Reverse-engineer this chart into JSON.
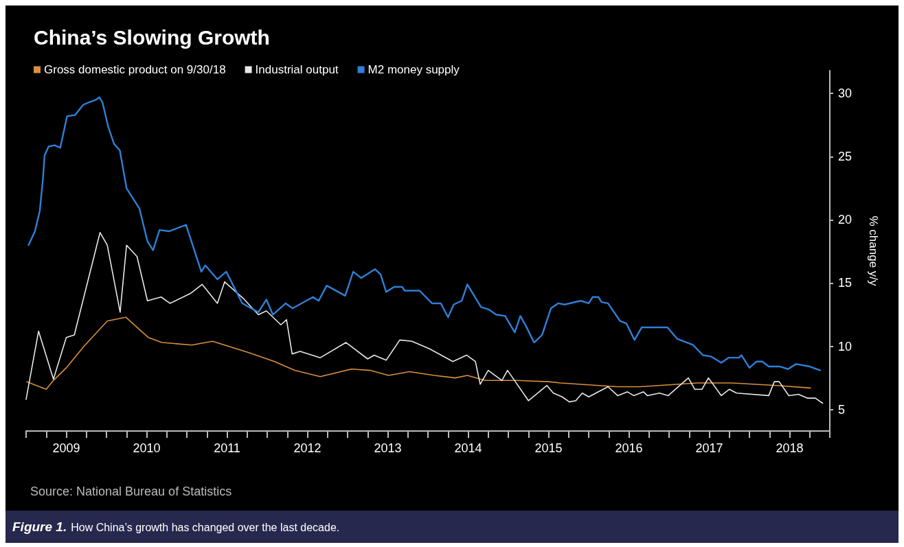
{
  "chart_data": {
    "type": "line",
    "title": "China’s Slowing Growth",
    "y2label": "% change y/y",
    "legend": "top left",
    "grid": false,
    "xlim": [
      2009,
      2019
    ],
    "y2lim": [
      3.3,
      31.8
    ],
    "y2ticks": [
      5,
      10,
      15,
      20,
      25,
      30
    ],
    "xticks": [
      {
        "value": 2009,
        "label": null
      },
      {
        "value": 2009.25,
        "label": null
      },
      {
        "value": 2009.5,
        "label": "2009"
      },
      {
        "value": 2009.75,
        "label": null
      },
      {
        "value": 2010,
        "label": null
      },
      {
        "value": 2010.25,
        "label": null
      },
      {
        "value": 2010.5,
        "label": "2010"
      },
      {
        "value": 2010.75,
        "label": null
      },
      {
        "value": 2011,
        "label": null
      },
      {
        "value": 2011.25,
        "label": null
      },
      {
        "value": 2011.5,
        "label": "2011"
      },
      {
        "value": 2011.75,
        "label": null
      },
      {
        "value": 2012,
        "label": null
      },
      {
        "value": 2012.25,
        "label": null
      },
      {
        "value": 2012.5,
        "label": "2012"
      },
      {
        "value": 2012.75,
        "label": null
      },
      {
        "value": 2013,
        "label": null
      },
      {
        "value": 2013.25,
        "label": null
      },
      {
        "value": 2013.5,
        "label": "2013"
      },
      {
        "value": 2013.75,
        "label": null
      },
      {
        "value": 2014,
        "label": null
      },
      {
        "value": 2014.25,
        "label": null
      },
      {
        "value": 2014.5,
        "label": "2014"
      },
      {
        "value": 2014.75,
        "label": null
      },
      {
        "value": 2015,
        "label": null
      },
      {
        "value": 2015.25,
        "label": null
      },
      {
        "value": 2015.5,
        "label": "2015"
      },
      {
        "value": 2015.75,
        "label": null
      },
      {
        "value": 2016,
        "label": null
      },
      {
        "value": 2016.25,
        "label": null
      },
      {
        "value": 2016.5,
        "label": "2016"
      },
      {
        "value": 2016.75,
        "label": null
      },
      {
        "value": 2017,
        "label": null
      },
      {
        "value": 2017.25,
        "label": null
      },
      {
        "value": 2017.5,
        "label": "2017"
      },
      {
        "value": 2017.75,
        "label": null
      },
      {
        "value": 2018,
        "label": null
      },
      {
        "value": 2018.25,
        "label": null
      },
      {
        "value": 2018.5,
        "label": "2018"
      },
      {
        "value": 2018.75,
        "label": null
      },
      {
        "value": 2019,
        "label": null
      }
    ],
    "annotations": [
      "Source: National Bureau of Statistics",
      "Figure 1.",
      "How China’s growth has changed over the last decade."
    ],
    "series": [
      {
        "name": "Gross domestic product on 9/30/18",
        "color": "#d8903e",
        "axis": "y2",
        "x": [
          2009.01,
          2009.25,
          2009.34,
          2009.5,
          2009.72,
          2010.01,
          2010.24,
          2010.52,
          2010.69,
          2011.06,
          2011.32,
          2011.77,
          2012.09,
          2012.34,
          2012.66,
          2013.05,
          2013.28,
          2013.51,
          2013.77,
          2014.08,
          2014.34,
          2014.49,
          2014.71,
          2015.1,
          2015.5,
          2015.65,
          2016.36,
          2016.64,
          2017.35,
          2017.78,
          2018.35,
          2018.76
        ],
        "values": [
          7.2,
          6.6,
          7.3,
          8.3,
          10.0,
          12.0,
          12.3,
          10.7,
          10.3,
          10.1,
          10.4,
          9.5,
          8.8,
          8.1,
          7.6,
          8.2,
          8.1,
          7.7,
          8.0,
          7.7,
          7.5,
          7.7,
          7.3,
          7.3,
          7.2,
          7.1,
          6.8,
          6.8,
          7.1,
          7.1,
          6.9,
          6.7
        ]
      },
      {
        "name": "Industrial output",
        "color": "#e8e8e8",
        "axis": "y2",
        "x": [
          2009.0,
          2009.155,
          2009.34,
          2009.5,
          2009.6,
          2009.92,
          2010.01,
          2010.17,
          2010.25,
          2010.38,
          2010.51,
          2010.68,
          2010.79,
          2011.05,
          2011.19,
          2011.38,
          2011.47,
          2011.7,
          2011.89,
          2011.99,
          2012.17,
          2012.24,
          2012.31,
          2012.41,
          2012.66,
          2012.98,
          2013.25,
          2013.33,
          2013.48,
          2013.65,
          2013.8,
          2014.02,
          2014.31,
          2014.48,
          2014.59,
          2014.65,
          2014.75,
          2014.92,
          2014.99,
          2015.25,
          2015.48,
          2015.56,
          2015.67,
          2015.76,
          2015.84,
          2015.92,
          2016.0,
          2016.24,
          2016.36,
          2016.48,
          2016.56,
          2016.68,
          2016.73,
          2016.88,
          2016.99,
          2017.24,
          2017.32,
          2017.41,
          2017.49,
          2017.65,
          2017.75,
          2017.84,
          2018.24,
          2018.31,
          2018.37,
          2018.49,
          2018.61,
          2018.72,
          2018.82,
          2018.91
        ],
        "values": [
          5.8,
          11.2,
          7.4,
          10.7,
          10.9,
          19.0,
          18.0,
          12.7,
          18.0,
          17.1,
          13.6,
          13.9,
          13.4,
          14.2,
          14.9,
          13.4,
          15.1,
          13.8,
          12.5,
          12.8,
          11.7,
          12.1,
          9.4,
          9.6,
          9.1,
          10.3,
          9.0,
          9.3,
          8.9,
          10.5,
          10.4,
          9.8,
          8.8,
          9.3,
          8.8,
          7.0,
          8.1,
          7.3,
          8.1,
          5.7,
          6.9,
          6.3,
          6.0,
          5.6,
          5.7,
          6.3,
          6.0,
          6.8,
          6.1,
          6.4,
          6.1,
          6.4,
          6.1,
          6.3,
          6.1,
          7.5,
          6.6,
          6.6,
          7.5,
          6.1,
          6.6,
          6.3,
          6.1,
          7.2,
          7.2,
          6.1,
          6.2,
          5.9,
          5.9,
          5.5
        ]
      },
      {
        "name": "M2 money supply",
        "color": "#2f80d8",
        "axis": "y2",
        "x": [
          2009.03,
          2009.11,
          2009.17,
          2009.21,
          2009.23,
          2009.28,
          2009.355,
          2009.425,
          2009.51,
          2009.61,
          2009.71,
          2009.78,
          2009.87,
          2009.91,
          2009.95,
          2010.02,
          2010.095,
          2010.166,
          2010.25,
          2010.41,
          2010.51,
          2010.58,
          2010.66,
          2010.78,
          2010.99,
          2011.18,
          2011.23,
          2011.38,
          2011.49,
          2011.69,
          2011.89,
          2011.99,
          2012.07,
          2012.23,
          2012.315,
          2012.57,
          2012.64,
          2012.74,
          2012.97,
          2013.07,
          2013.17,
          2013.34,
          2013.41,
          2013.48,
          2013.58,
          2013.68,
          2013.71,
          2013.895,
          2014.05,
          2014.16,
          2014.25,
          2014.32,
          2014.42,
          2014.49,
          2014.66,
          2014.76,
          2014.85,
          2014.96,
          2015.08,
          2015.15,
          2015.22,
          2015.32,
          2015.42,
          2015.53,
          2015.62,
          2015.7,
          2015.9,
          2016.0,
          2016.05,
          2016.12,
          2016.16,
          2016.24,
          2016.39,
          2016.47,
          2016.57,
          2016.66,
          2016.79,
          2016.98,
          2017.1,
          2017.3,
          2017.42,
          2017.52,
          2017.65,
          2017.74,
          2017.87,
          2017.9,
          2018.0,
          2018.09,
          2018.16,
          2018.24,
          2018.38,
          2018.48,
          2018.58,
          2018.75,
          2018.88
        ],
        "values": [
          18.0,
          19.1,
          20.7,
          23.3,
          25.1,
          25.8,
          25.9,
          25.7,
          28.2,
          28.3,
          29.1,
          29.3,
          29.5,
          29.7,
          29.3,
          27.4,
          26.0,
          25.5,
          22.5,
          20.9,
          18.3,
          17.6,
          19.2,
          19.1,
          19.6,
          15.9,
          16.4,
          15.3,
          15.9,
          13.4,
          12.7,
          13.7,
          12.5,
          13.4,
          13.0,
          13.9,
          13.6,
          14.8,
          14.0,
          15.9,
          15.4,
          16.1,
          15.7,
          14.3,
          14.7,
          14.7,
          14.4,
          14.4,
          13.4,
          13.4,
          12.3,
          13.3,
          13.6,
          14.9,
          13.1,
          12.9,
          12.5,
          12.4,
          11.1,
          12.4,
          11.6,
          10.3,
          10.9,
          13.0,
          13.4,
          13.3,
          13.6,
          13.4,
          13.9,
          13.9,
          13.5,
          13.4,
          12.0,
          11.8,
          10.5,
          11.5,
          11.5,
          11.5,
          10.6,
          10.1,
          9.3,
          9.2,
          8.7,
          9.1,
          9.1,
          9.3,
          8.3,
          8.8,
          8.8,
          8.4,
          8.4,
          8.2,
          8.6,
          8.4,
          8.1
        ]
      }
    ]
  }
}
